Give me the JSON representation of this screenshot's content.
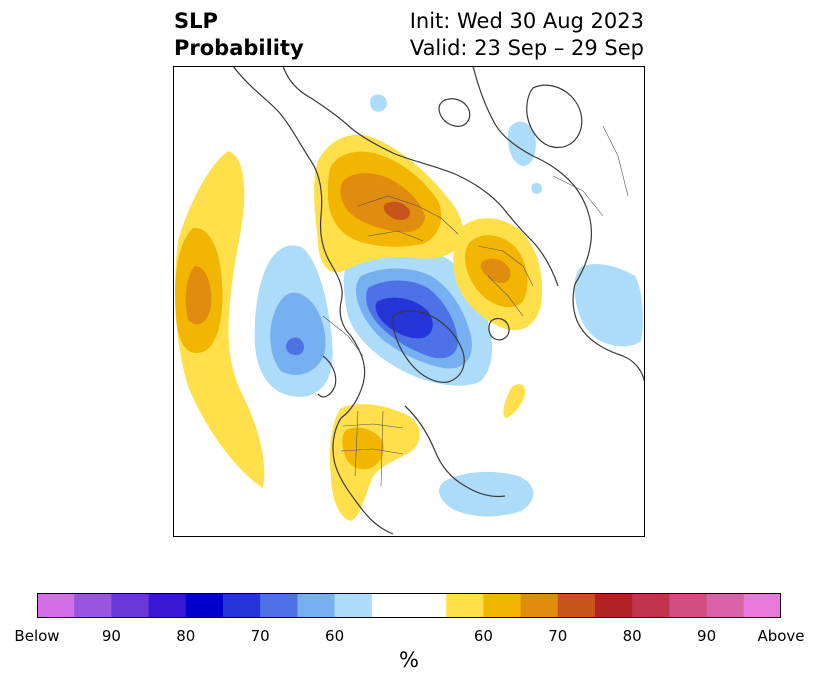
{
  "header": {
    "title_line1": "SLP",
    "title_line2": "Probability",
    "init": "Init: Wed 30 Aug 2023",
    "valid": "Valid: 23 Sep – 29 Sep"
  },
  "colorbar": {
    "unit": "%",
    "colors": [
      "#d46ee8",
      "#9a55e0",
      "#6b38d8",
      "#3a17d3",
      "#0000cc",
      "#2635d9",
      "#4c72e6",
      "#77b0f0",
      "#acdcfa",
      "#ffffff",
      "#ffffff",
      "#ffe04a",
      "#f3b600",
      "#e08c0e",
      "#c7551b",
      "#b22222",
      "#c0354c",
      "#d04e80",
      "#db61a8",
      "#e878d9"
    ],
    "labels": [
      "Below",
      "90",
      "80",
      "70",
      "60",
      "60",
      "70",
      "80",
      "90",
      "Above"
    ]
  },
  "map": {
    "colors": {
      "below_60": "#acdcfa",
      "below_65": "#77b0f0",
      "below_70": "#4c72e6",
      "below_75": "#2635d9",
      "above_60": "#ffe04a",
      "above_65": "#f3b600",
      "above_70": "#e08c0e",
      "above_75": "#c7551b"
    }
  }
}
